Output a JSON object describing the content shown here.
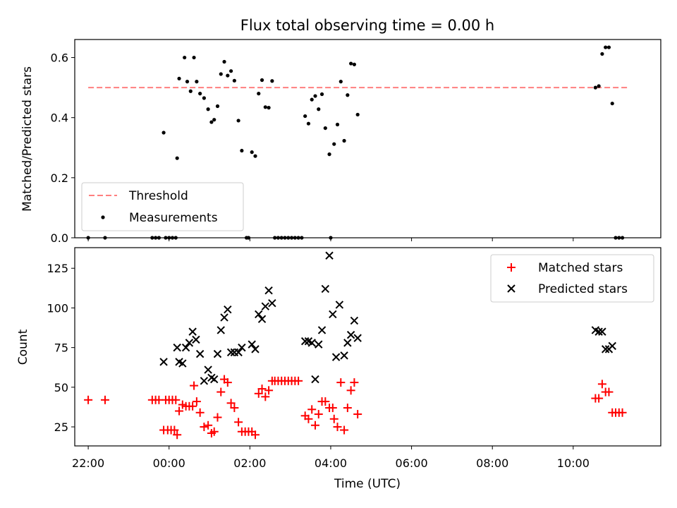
{
  "chart_data": [
    {
      "type": "scatter",
      "title": "Flux total observing time = 0.00 h",
      "xlabel": "",
      "ylabel": "Matched/Predicted stars",
      "ylim": [
        0,
        0.66
      ],
      "xlim": [
        "21:40",
        "12:10"
      ],
      "yticks": [
        "0.0",
        "0.2",
        "0.4",
        "0.6"
      ],
      "legend_position": "lower-left",
      "grid": false,
      "series": [
        {
          "name": "Threshold",
          "kind": "line",
          "style": "dashed",
          "color": "#ff7f7f",
          "x": [
            "22:00",
            "11:20"
          ],
          "y": [
            0.5,
            0.5
          ]
        },
        {
          "name": "Measurements",
          "kind": "scatter",
          "color": "#000000",
          "points": [
            [
              "22:00",
              0
            ],
            [
              "22:25",
              0
            ],
            [
              "23:35",
              0
            ],
            [
              "23:40",
              0
            ],
            [
              "23:45",
              0
            ],
            [
              "23:55",
              0
            ],
            [
              "00:00",
              0
            ],
            [
              "00:05",
              0
            ],
            [
              "00:10",
              0
            ],
            [
              "23:52",
              0.35
            ],
            [
              "00:12",
              0.265
            ],
            [
              "00:15",
              0.53
            ],
            [
              "00:23",
              0.6
            ],
            [
              "00:27",
              0.52
            ],
            [
              "00:32",
              0.488
            ],
            [
              "00:37",
              0.6
            ],
            [
              "00:41",
              0.52
            ],
            [
              "00:46",
              0.48
            ],
            [
              "00:52",
              0.465
            ],
            [
              "00:58",
              0.428
            ],
            [
              "01:03",
              0.385
            ],
            [
              "01:07",
              0.393
            ],
            [
              "01:12",
              0.438
            ],
            [
              "01:17",
              0.545
            ],
            [
              "01:22",
              0.586
            ],
            [
              "01:27",
              0.54
            ],
            [
              "01:32",
              0.555
            ],
            [
              "01:37",
              0.523
            ],
            [
              "01:43",
              0.39
            ],
            [
              "01:48",
              0.29
            ],
            [
              "01:55",
              0
            ],
            [
              "01:58",
              0
            ],
            [
              "02:03",
              0.285
            ],
            [
              "02:08",
              0.272
            ],
            [
              "02:13",
              0.48
            ],
            [
              "02:18",
              0.525
            ],
            [
              "02:23",
              0.435
            ],
            [
              "02:28",
              0.433
            ],
            [
              "02:33",
              0.522
            ],
            [
              "02:37",
              0
            ],
            [
              "02:42",
              0
            ],
            [
              "02:47",
              0
            ],
            [
              "02:52",
              0
            ],
            [
              "02:57",
              0
            ],
            [
              "03:02",
              0
            ],
            [
              "03:07",
              0
            ],
            [
              "03:12",
              0
            ],
            [
              "03:17",
              0
            ],
            [
              "03:22",
              0.405
            ],
            [
              "03:27",
              0.38
            ],
            [
              "03:32",
              0.46
            ],
            [
              "03:37",
              0.472
            ],
            [
              "03:42",
              0.428
            ],
            [
              "03:47",
              0.478
            ],
            [
              "03:52",
              0.365
            ],
            [
              "03:58",
              0.278
            ],
            [
              "04:00",
              0
            ],
            [
              "04:05",
              0.312
            ],
            [
              "04:10",
              0.377
            ],
            [
              "04:15",
              0.52
            ],
            [
              "04:20",
              0.323
            ],
            [
              "04:25",
              0.475
            ],
            [
              "04:30",
              0.58
            ],
            [
              "04:35",
              0.577
            ],
            [
              "04:40",
              0.41
            ],
            [
              "10:33",
              0.5
            ],
            [
              "10:38",
              0.505
            ],
            [
              "10:43",
              0.612
            ],
            [
              "10:48",
              0.634
            ],
            [
              "10:53",
              0.634
            ],
            [
              "10:58",
              0.447
            ],
            [
              "11:03",
              0
            ],
            [
              "11:08",
              0
            ],
            [
              "11:13",
              0
            ]
          ]
        }
      ]
    },
    {
      "type": "scatter",
      "title": "",
      "xlabel": "Time (UTC)",
      "ylabel": "Count",
      "ylim": [
        13,
        138
      ],
      "xlim": [
        "21:40",
        "12:10"
      ],
      "xticks": [
        "22:00",
        "00:00",
        "02:00",
        "04:00",
        "06:00",
        "08:00",
        "10:00"
      ],
      "yticks": [
        "25",
        "50",
        "75",
        "100",
        "125"
      ],
      "legend_position": "upper-right",
      "grid": false,
      "series": [
        {
          "name": "Matched stars",
          "marker": "+",
          "color": "#ff0000",
          "points": [
            [
              "22:00",
              42
            ],
            [
              "22:25",
              42
            ],
            [
              "23:35",
              42
            ],
            [
              "23:40",
              42
            ],
            [
              "23:45",
              42
            ],
            [
              "23:55",
              42
            ],
            [
              "00:00",
              42
            ],
            [
              "00:05",
              42
            ],
            [
              "00:10",
              42
            ],
            [
              "23:52",
              23
            ],
            [
              "23:58",
              23
            ],
            [
              "00:03",
              23
            ],
            [
              "00:08",
              23
            ],
            [
              "00:12",
              20
            ],
            [
              "00:15",
              35
            ],
            [
              "00:20",
              39
            ],
            [
              "00:25",
              38
            ],
            [
              "00:30",
              38
            ],
            [
              "00:35",
              38
            ],
            [
              "00:37",
              51
            ],
            [
              "00:41",
              41
            ],
            [
              "00:46",
              34
            ],
            [
              "00:52",
              25
            ],
            [
              "00:58",
              26
            ],
            [
              "01:03",
              21
            ],
            [
              "01:07",
              22
            ],
            [
              "01:12",
              31
            ],
            [
              "01:17",
              47
            ],
            [
              "01:22",
              55
            ],
            [
              "01:27",
              53
            ],
            [
              "01:32",
              40
            ],
            [
              "01:37",
              37
            ],
            [
              "01:43",
              28
            ],
            [
              "01:48",
              22
            ],
            [
              "01:53",
              22
            ],
            [
              "01:58",
              22
            ],
            [
              "02:03",
              22
            ],
            [
              "02:08",
              20
            ],
            [
              "02:13",
              46
            ],
            [
              "02:18",
              49
            ],
            [
              "02:23",
              44
            ],
            [
              "02:28",
              48
            ],
            [
              "02:33",
              54
            ],
            [
              "02:37",
              54
            ],
            [
              "02:42",
              54
            ],
            [
              "02:47",
              54
            ],
            [
              "02:52",
              54
            ],
            [
              "02:57",
              54
            ],
            [
              "03:02",
              54
            ],
            [
              "03:07",
              54
            ],
            [
              "03:12",
              54
            ],
            [
              "03:22",
              32
            ],
            [
              "03:27",
              30
            ],
            [
              "03:32",
              36
            ],
            [
              "03:37",
              26
            ],
            [
              "03:42",
              33
            ],
            [
              "03:47",
              41
            ],
            [
              "03:52",
              41
            ],
            [
              "03:58",
              37
            ],
            [
              "04:03",
              37
            ],
            [
              "04:05",
              30
            ],
            [
              "04:10",
              25
            ],
            [
              "04:15",
              53
            ],
            [
              "04:20",
              23
            ],
            [
              "04:25",
              37
            ],
            [
              "04:30",
              48
            ],
            [
              "04:35",
              53
            ],
            [
              "04:40",
              33
            ],
            [
              "10:33",
              43
            ],
            [
              "10:38",
              43
            ],
            [
              "10:43",
              52
            ],
            [
              "10:48",
              47
            ],
            [
              "10:53",
              47
            ],
            [
              "10:58",
              34
            ],
            [
              "11:03",
              34
            ],
            [
              "11:08",
              34
            ],
            [
              "11:13",
              34
            ]
          ]
        },
        {
          "name": "Predicted stars",
          "marker": "x",
          "color": "#000000",
          "points": [
            [
              "23:52",
              66
            ],
            [
              "00:12",
              75
            ],
            [
              "00:15",
              66
            ],
            [
              "00:20",
              65
            ],
            [
              "00:25",
              75
            ],
            [
              "00:30",
              78
            ],
            [
              "00:35",
              85
            ],
            [
              "00:40",
              80
            ],
            [
              "00:46",
              71
            ],
            [
              "00:52",
              54
            ],
            [
              "00:58",
              61
            ],
            [
              "01:03",
              56
            ],
            [
              "01:07",
              55
            ],
            [
              "01:12",
              71
            ],
            [
              "01:17",
              86
            ],
            [
              "01:22",
              94
            ],
            [
              "01:27",
              99
            ],
            [
              "01:32",
              72
            ],
            [
              "01:37",
              72
            ],
            [
              "01:43",
              72
            ],
            [
              "01:48",
              75
            ],
            [
              "02:03",
              77
            ],
            [
              "02:08",
              74
            ],
            [
              "02:13",
              96
            ],
            [
              "02:18",
              93
            ],
            [
              "02:23",
              101
            ],
            [
              "02:28",
              111
            ],
            [
              "02:33",
              103
            ],
            [
              "03:22",
              79
            ],
            [
              "03:27",
              79
            ],
            [
              "03:32",
              78
            ],
            [
              "03:37",
              55
            ],
            [
              "03:42",
              77
            ],
            [
              "03:47",
              86
            ],
            [
              "03:52",
              112
            ],
            [
              "03:58",
              133
            ],
            [
              "04:03",
              96
            ],
            [
              "04:08",
              69
            ],
            [
              "04:13",
              102
            ],
            [
              "04:20",
              70
            ],
            [
              "04:25",
              78
            ],
            [
              "04:30",
              83
            ],
            [
              "04:35",
              92
            ],
            [
              "04:40",
              81
            ],
            [
              "10:33",
              86
            ],
            [
              "10:38",
              85
            ],
            [
              "10:43",
              85
            ],
            [
              "10:48",
              74
            ],
            [
              "10:53",
              74
            ],
            [
              "10:58",
              76
            ]
          ]
        }
      ]
    }
  ]
}
